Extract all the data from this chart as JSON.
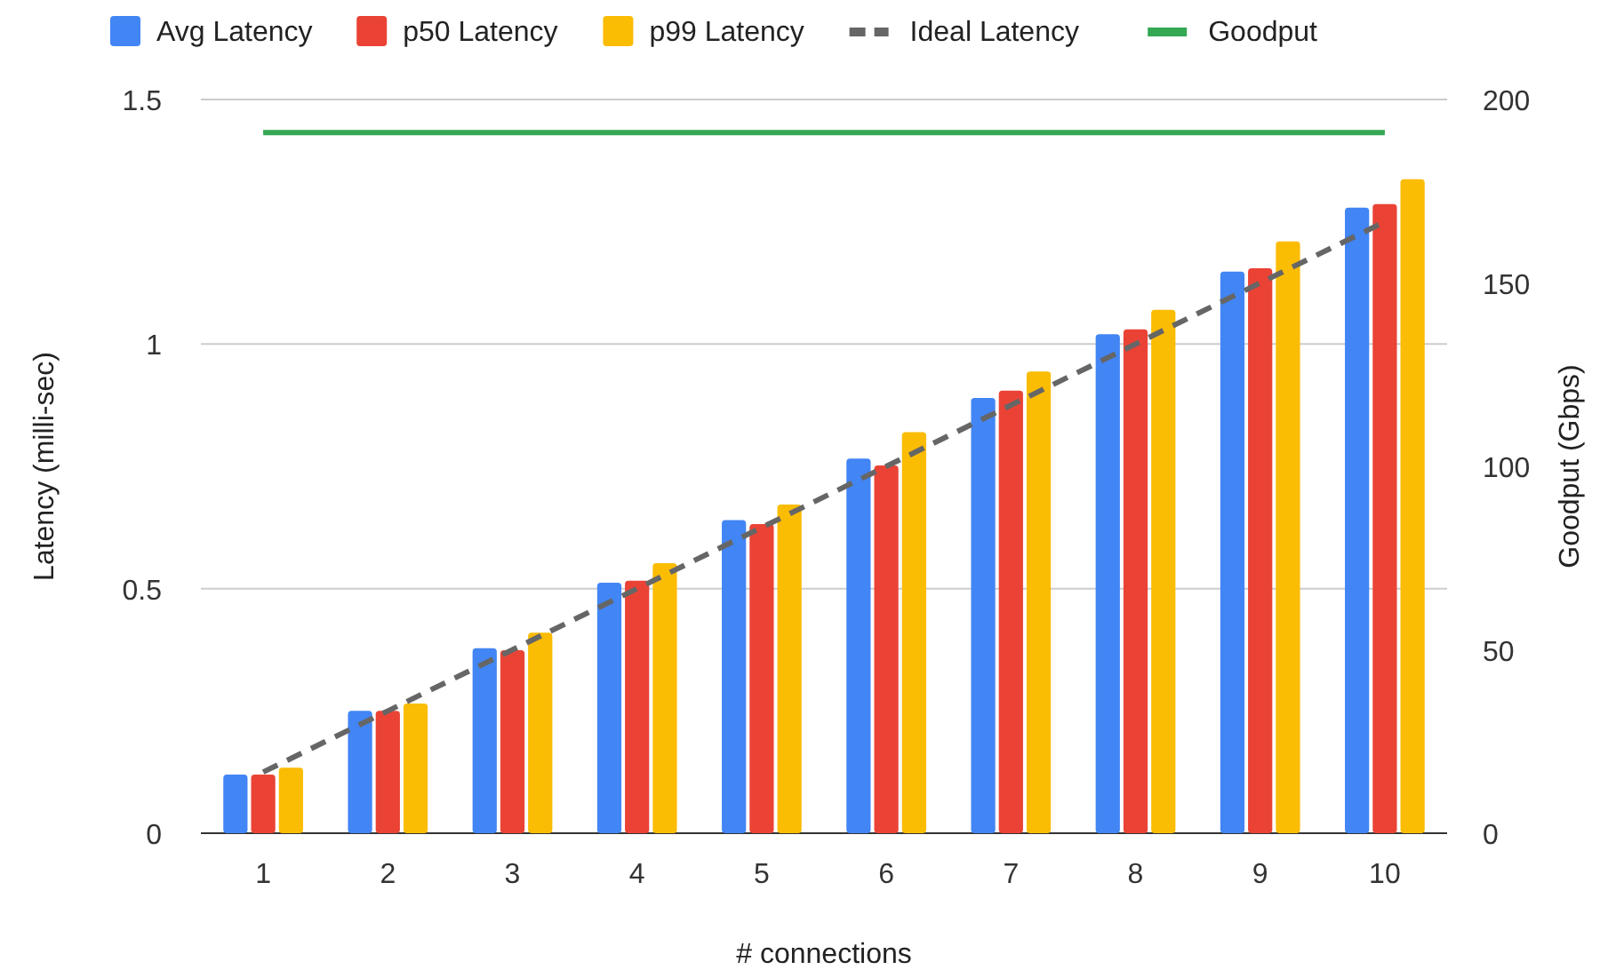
{
  "chart_data": {
    "type": "bar",
    "xlabel": "# connections",
    "ylabel": "Latency (milli-sec)",
    "y2label": "Goodput (Gbps)",
    "categories": [
      "1",
      "2",
      "3",
      "4",
      "5",
      "6",
      "7",
      "8",
      "9",
      "10"
    ],
    "series": [
      {
        "name": "Avg Latency",
        "color": "#4285f4",
        "values": [
          0.12,
          0.25,
          0.378,
          0.512,
          0.64,
          0.766,
          0.89,
          1.02,
          1.148,
          1.279
        ]
      },
      {
        "name": "p50 Latency",
        "color": "#ea4335",
        "values": [
          0.12,
          0.25,
          0.374,
          0.516,
          0.632,
          0.752,
          0.905,
          1.03,
          1.155,
          1.286
        ]
      },
      {
        "name": "p99 Latency",
        "color": "#fbbc04",
        "values": [
          0.134,
          0.265,
          0.41,
          0.552,
          0.672,
          0.82,
          0.944,
          1.07,
          1.21,
          1.337
        ]
      },
      {
        "name": "Ideal Latency",
        "type": "line",
        "color": "#666666",
        "line_style": "dashed",
        "values": [
          0.125,
          0.25,
          0.375,
          0.5,
          0.625,
          0.75,
          0.875,
          1,
          1.125,
          1.25
        ]
      },
      {
        "name": "Goodput",
        "type": "line",
        "color": "#34a853",
        "line_style": "solid",
        "axis": "y2",
        "values": [
          191,
          191,
          191,
          191,
          191,
          191,
          191,
          191,
          191,
          191
        ]
      }
    ],
    "ylim": [
      0,
      1.5
    ],
    "yticks": [
      0,
      0.5,
      1,
      1.5
    ],
    "y2lim": [
      0,
      200
    ],
    "y2ticks": [
      0,
      50,
      100,
      150,
      200
    ],
    "grid": "y",
    "legend": "top",
    "marker": "none"
  }
}
